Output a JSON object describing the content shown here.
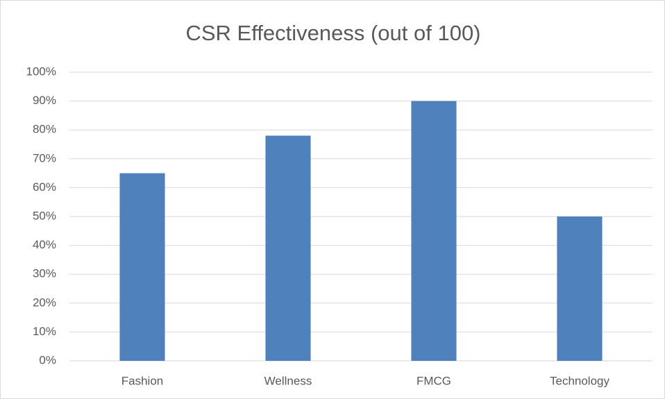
{
  "chart_data": {
    "type": "bar",
    "title": "CSR Effectiveness (out of 100)",
    "categories": [
      "Fashion",
      "Wellness",
      "FMCG",
      "Technology"
    ],
    "values": [
      65,
      78,
      90,
      50
    ],
    "color": "#4f81bd",
    "ylim": [
      0,
      100
    ],
    "yticks": [
      {
        "value": 0,
        "label": "0%"
      },
      {
        "value": 10,
        "label": "10%"
      },
      {
        "value": 20,
        "label": "20%"
      },
      {
        "value": 30,
        "label": "30%"
      },
      {
        "value": 40,
        "label": "40%"
      },
      {
        "value": 50,
        "label": "50%"
      },
      {
        "value": 60,
        "label": "60%"
      },
      {
        "value": 70,
        "label": "70%"
      },
      {
        "value": 80,
        "label": "80%"
      },
      {
        "value": 90,
        "label": "90%"
      },
      {
        "value": 100,
        "label": "100%"
      }
    ],
    "grid": true
  }
}
